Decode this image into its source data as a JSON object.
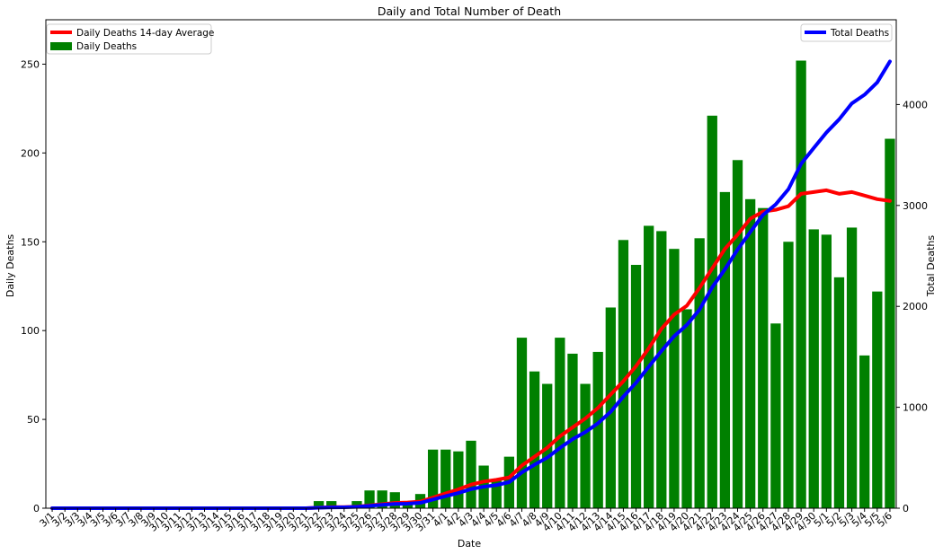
{
  "chart_data": {
    "type": "bar",
    "title": "Daily and Total Number of Death",
    "xlabel": "Date",
    "ylabel": "Daily Deaths",
    "y2label": "Total Deaths",
    "ylim": [
      0,
      275
    ],
    "y2lim": [
      0,
      4840
    ],
    "yticks": [
      0,
      50,
      100,
      150,
      200,
      250
    ],
    "y2ticks": [
      0,
      1000,
      2000,
      3000,
      4000
    ],
    "grid": false,
    "categories": [
      "3/1",
      "3/2",
      "3/3",
      "3/4",
      "3/5",
      "3/6",
      "3/7",
      "3/8",
      "3/9",
      "3/10",
      "3/11",
      "3/12",
      "3/13",
      "3/14",
      "3/15",
      "3/16",
      "3/17",
      "3/18",
      "3/19",
      "3/20",
      "3/21",
      "3/22",
      "3/23",
      "3/24",
      "3/25",
      "3/26",
      "3/27",
      "3/28",
      "3/29",
      "3/30",
      "3/31",
      "4/1",
      "4/2",
      "4/3",
      "4/4",
      "4/5",
      "4/6",
      "4/7",
      "4/8",
      "4/9",
      "4/10",
      "4/11",
      "4/12",
      "4/13",
      "4/14",
      "4/15",
      "4/16",
      "4/17",
      "4/18",
      "4/19",
      "4/20",
      "4/21",
      "4/22",
      "4/23",
      "4/24",
      "4/25",
      "4/26",
      "4/27",
      "4/28",
      "4/29",
      "4/30",
      "5/1",
      "5/2",
      "5/3",
      "5/4",
      "5/5",
      "5/6"
    ],
    "series": [
      {
        "name": "Daily Deaths",
        "kind": "bar",
        "axis": "left",
        "color": "#008000",
        "values": [
          0,
          0,
          0,
          0,
          0,
          0,
          0,
          0,
          0,
          0,
          0,
          0,
          0,
          0,
          0,
          0,
          0,
          0,
          0,
          0,
          0,
          4,
          4,
          1,
          4,
          10,
          10,
          9,
          3,
          8,
          33,
          33,
          32,
          38,
          24,
          16,
          29,
          96,
          77,
          70,
          96,
          87,
          70,
          88,
          113,
          151,
          137,
          159,
          156,
          146,
          112,
          152,
          221,
          178,
          196,
          174,
          169,
          104,
          150,
          252,
          157,
          154,
          130,
          158,
          86,
          122,
          208
        ]
      },
      {
        "name": "Daily Deaths 14-day Average",
        "kind": "line",
        "axis": "left",
        "color": "#ff0000",
        "values": [
          0,
          0,
          0,
          0,
          0,
          0,
          0,
          0,
          0,
          0,
          0,
          0,
          0,
          0,
          0,
          0,
          0,
          0,
          0,
          0,
          0,
          0.3,
          0.6,
          0.6,
          0.9,
          1.6,
          2.3,
          3,
          3.2,
          3.7,
          6,
          8.3,
          10.6,
          13.3,
          15,
          16,
          17.3,
          24,
          29,
          34,
          40.5,
          45.5,
          50.5,
          56.5,
          64,
          71.5,
          80,
          90,
          101,
          109,
          114,
          124,
          135,
          146,
          154,
          163,
          167,
          168,
          170,
          177,
          178,
          179,
          177,
          178,
          176,
          174,
          173
        ]
      },
      {
        "name": "Total Deaths",
        "kind": "line",
        "axis": "right",
        "color": "#0000ff",
        "values": [
          0,
          0,
          0,
          0,
          0,
          0,
          0,
          0,
          0,
          0,
          0,
          0,
          0,
          0,
          0,
          0,
          0,
          0,
          0,
          0,
          0,
          4,
          8,
          9,
          13,
          23,
          33,
          42,
          45,
          53,
          86,
          119,
          151,
          189,
          213,
          229,
          258,
          354,
          431,
          501,
          597,
          684,
          754,
          842,
          955,
          1106,
          1243,
          1402,
          1558,
          1704,
          1816,
          1968,
          2189,
          2367,
          2563,
          2737,
          2906,
          3010,
          3160,
          3412,
          3569,
          3723,
          3853,
          4011,
          4097,
          4219,
          4427
        ]
      }
    ],
    "legend_left": [
      "Daily Deaths 14-day Average",
      "Daily Deaths"
    ],
    "legend_left_placement": "top-left",
    "legend_right": [
      "Total Deaths"
    ],
    "legend_right_placement": "top-right"
  }
}
